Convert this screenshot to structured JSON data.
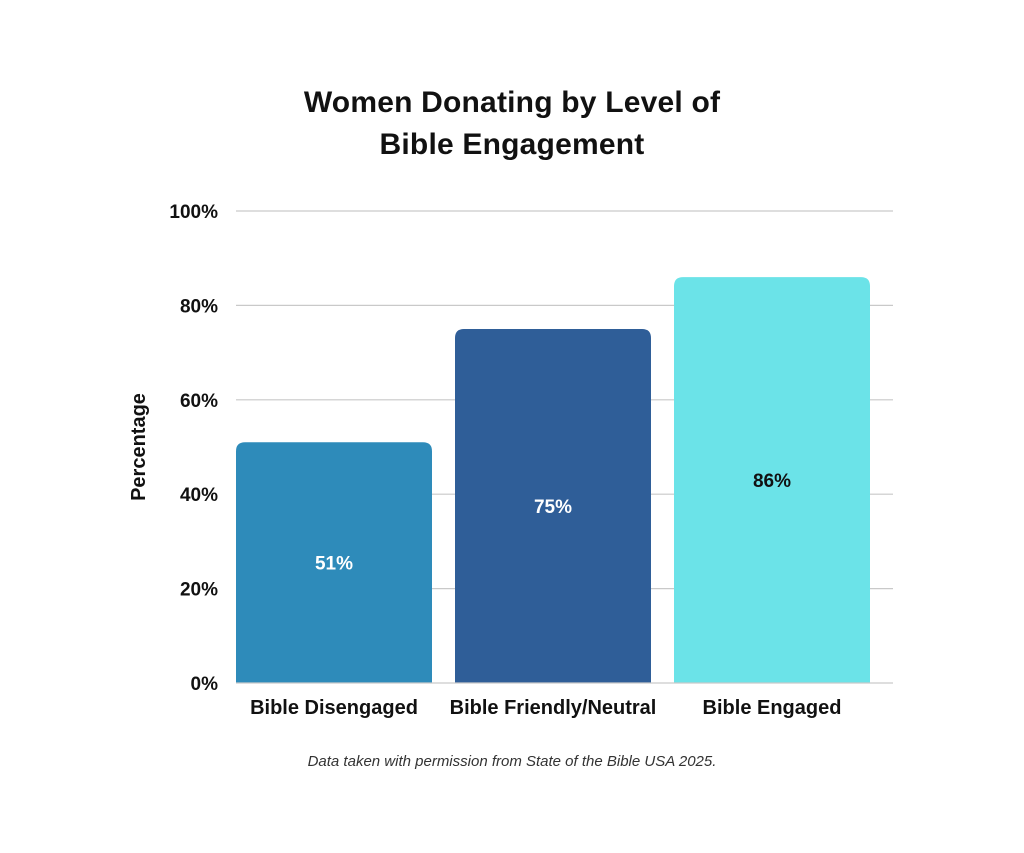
{
  "chart_data": {
    "type": "bar",
    "title_lines": [
      "Women Donating by Level of",
      "Bible Engagement"
    ],
    "ylabel": "Percentage",
    "xlabel": "",
    "ylim": [
      0,
      100
    ],
    "yticks": [
      0,
      20,
      40,
      60,
      80,
      100
    ],
    "ytick_labels": [
      "0%",
      "20%",
      "40%",
      "60%",
      "80%",
      "100%"
    ],
    "grid": true,
    "categories": [
      "Bible Disengaged",
      "Bible Friendly/Neutral",
      "Bible Engaged"
    ],
    "values": [
      51,
      75,
      86
    ],
    "value_labels": [
      "51%",
      "75%",
      "86%"
    ],
    "colors": [
      "#2e8bba",
      "#2f5e98",
      "#6be3e8"
    ],
    "label_colors": [
      "#ffffff",
      "#ffffff",
      "#111111"
    ]
  },
  "footnote": "Data taken with permission from State of the Bible USA 2025."
}
